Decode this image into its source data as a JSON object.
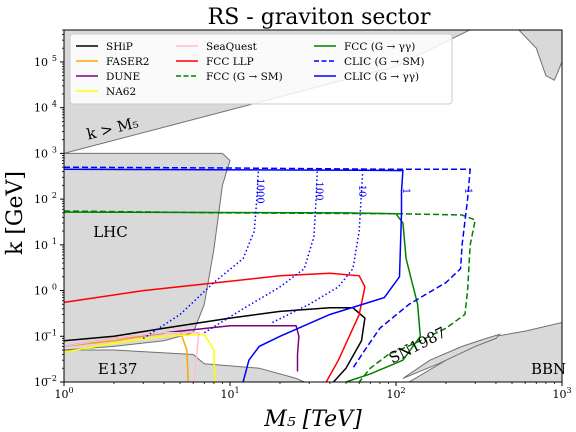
{
  "chart_data": {
    "type": "line",
    "title": "RS - graviton sector",
    "xlabel": "M₅ [TeV]",
    "ylabel": "k [GeV]",
    "xscale": "log",
    "yscale": "log",
    "xlim": [
      1,
      1000
    ],
    "ylim": [
      0.01,
      500000
    ],
    "x_ticks": [
      {
        "v": 1,
        "base": "10",
        "exp": "0"
      },
      {
        "v": 10,
        "base": "10",
        "exp": "1"
      },
      {
        "v": 100,
        "base": "10",
        "exp": "2"
      },
      {
        "v": 1000,
        "base": "10",
        "exp": "3"
      }
    ],
    "y_ticks": [
      {
        "v": 0.01,
        "base": "10",
        "exp": "−2"
      },
      {
        "v": 0.1,
        "base": "10",
        "exp": "−1"
      },
      {
        "v": 1,
        "base": "10",
        "exp": "0"
      },
      {
        "v": 10,
        "base": "10",
        "exp": "1"
      },
      {
        "v": 100,
        "base": "10",
        "exp": "2"
      },
      {
        "v": 1000,
        "base": "10",
        "exp": "3"
      },
      {
        "v": 10000,
        "base": "10",
        "exp": "4"
      },
      {
        "v": 100000,
        "base": "10",
        "exp": "5"
      }
    ],
    "grid": false,
    "legend_position": "top",
    "colors": {
      "region_fill": "#d9d9d9",
      "region_edge": "#707070",
      "ship": "#000000",
      "faser2": "#ffa500",
      "dune": "#800080",
      "na62": "#ffff00",
      "seaquest": "#ffc0cb",
      "fcc_llp": "#ff0000",
      "fcc_green": "#008000",
      "clic_blue": "#0000ff"
    },
    "series": [
      {
        "name": "SHiP",
        "key": "ship",
        "style": "solid",
        "points": [
          [
            1,
            0.08
          ],
          [
            2,
            0.1
          ],
          [
            4,
            0.15
          ],
          [
            10,
            0.25
          ],
          [
            20,
            0.35
          ],
          [
            40,
            0.42
          ],
          [
            55,
            0.42
          ],
          [
            65,
            0.25
          ],
          [
            62,
            0.08
          ],
          [
            50,
            0.02
          ],
          [
            42,
            0.01
          ]
        ]
      },
      {
        "name": "FASER2",
        "key": "faser2",
        "style": "solid",
        "points": [
          [
            1,
            0.06
          ],
          [
            2,
            0.08
          ],
          [
            3,
            0.1
          ],
          [
            5,
            0.13
          ],
          [
            5.5,
            0.05
          ],
          [
            5.6,
            0.01
          ]
        ]
      },
      {
        "name": "DUNE",
        "key": "dune",
        "style": "solid",
        "points": [
          [
            1,
            0.06
          ],
          [
            2,
            0.09
          ],
          [
            5,
            0.13
          ],
          [
            10,
            0.17
          ],
          [
            25,
            0.17
          ],
          [
            26,
            0.1
          ],
          [
            25.5,
            0.04
          ],
          [
            25.5,
            0.017
          ]
        ]
      },
      {
        "name": "NA62",
        "key": "na62",
        "style": "solid",
        "points": [
          [
            1,
            0.045
          ],
          [
            2,
            0.07
          ],
          [
            4,
            0.1
          ],
          [
            7,
            0.11
          ],
          [
            8,
            0.05
          ],
          [
            8.1,
            0.01
          ]
        ]
      },
      {
        "name": "SeaQuest",
        "key": "seaquest",
        "style": "solid",
        "points": [
          [
            1,
            0.06
          ],
          [
            2,
            0.09
          ],
          [
            4,
            0.12
          ],
          [
            6.5,
            0.12
          ],
          [
            6.3,
            0.04
          ],
          [
            6.1,
            0.01
          ]
        ]
      },
      {
        "name": "FCC LLP",
        "key": "fcc_llp",
        "style": "solid",
        "points": [
          [
            1,
            0.55
          ],
          [
            3,
            1.0
          ],
          [
            10,
            1.6
          ],
          [
            20,
            2.1
          ],
          [
            40,
            2.4
          ],
          [
            60,
            2.1
          ],
          [
            65,
            1.2
          ],
          [
            60,
            0.3
          ],
          [
            45,
            0.03
          ],
          [
            38,
            0.01
          ]
        ]
      },
      {
        "name": "FCC (G → SM)",
        "key": "fcc_green",
        "style": "dashed",
        "points": [
          [
            1,
            55
          ],
          [
            10,
            50
          ],
          [
            100,
            48
          ],
          [
            250,
            45
          ],
          [
            300,
            35
          ],
          [
            280,
            10
          ],
          [
            270,
            1
          ],
          [
            260,
            0.3
          ],
          [
            200,
            0.15
          ],
          [
            130,
            0.07
          ],
          [
            90,
            0.04
          ],
          [
            70,
            0.02
          ],
          [
            60,
            0.01
          ]
        ]
      },
      {
        "name": "FCC (G → γγ)",
        "key": "fcc_green",
        "style": "solid",
        "points": [
          [
            1,
            52
          ],
          [
            50,
            50
          ],
          [
            100,
            48
          ],
          [
            110,
            30
          ],
          [
            115,
            5
          ],
          [
            125,
            1.5
          ],
          [
            135,
            0.5
          ],
          [
            140,
            0.1
          ],
          [
            110,
            0.03
          ],
          [
            70,
            0.015
          ],
          [
            50,
            0.01
          ]
        ]
      },
      {
        "name": "CLIC (G → SM)",
        "key": "clic_blue",
        "style": "dashed",
        "points": [
          [
            1,
            500
          ],
          [
            10,
            480
          ],
          [
            100,
            450
          ],
          [
            280,
            450
          ],
          [
            270,
            100
          ],
          [
            250,
            10
          ],
          [
            245,
            3
          ],
          [
            200,
            1.5
          ],
          [
            120,
            0.5
          ],
          [
            80,
            0.15
          ],
          [
            65,
            0.05
          ],
          [
            55,
            0.02
          ]
        ]
      },
      {
        "name": "CLIC (G → γγ)",
        "key": "clic_blue",
        "style": "solid",
        "points": [
          [
            1,
            450
          ],
          [
            60,
            430
          ],
          [
            110,
            420
          ],
          [
            108,
            150
          ],
          [
            108,
            50
          ],
          [
            105,
            2
          ],
          [
            85,
            0.7
          ],
          [
            40,
            0.3
          ],
          [
            20,
            0.1
          ],
          [
            15,
            0.06
          ],
          [
            13,
            0.03
          ],
          [
            12,
            0.01
          ]
        ]
      }
    ],
    "dotted_curves": [
      {
        "label": "1000",
        "key": "clic_blue",
        "label_at": [
          14.5,
          150
        ],
        "points": [
          [
            3,
            0.09
          ],
          [
            5,
            0.3
          ],
          [
            8,
            1.5
          ],
          [
            12,
            5
          ],
          [
            14,
            20
          ],
          [
            14.5,
            100
          ],
          [
            14.8,
            400
          ]
        ]
      },
      {
        "label": "100",
        "key": "clic_blue",
        "label_at": [
          33,
          150
        ],
        "points": [
          [
            7,
            0.12
          ],
          [
            12,
            0.4
          ],
          [
            20,
            1.2
          ],
          [
            28,
            3
          ],
          [
            32,
            15
          ],
          [
            33,
            100
          ],
          [
            33.5,
            400
          ]
        ]
      },
      {
        "label": "10",
        "key": "clic_blue",
        "label_at": [
          60,
          150
        ],
        "points": [
          [
            18,
            0.2
          ],
          [
            30,
            0.5
          ],
          [
            45,
            1.2
          ],
          [
            55,
            3
          ],
          [
            60,
            20
          ],
          [
            62,
            150
          ],
          [
            63,
            400
          ]
        ]
      },
      {
        "label": "1",
        "key": "clic_blue",
        "label_at": [
          110,
          150
        ],
        "points": []
      },
      {
        "label": "1",
        "key": "clic_blue",
        "label_at": [
          260,
          150
        ],
        "points": []
      }
    ],
    "regions": [
      {
        "label": "k > M₅",
        "label_at": [
          1.4,
          2000
        ],
        "rotate": -14,
        "points": [
          [
            1,
            1000
          ],
          [
            100,
            80000
          ],
          [
            1000,
            5000000
          ],
          [
            1000,
            500000
          ],
          [
            1,
            500000
          ]
        ]
      },
      {
        "label": "",
        "label_at": null,
        "rotate": 0,
        "points": [
          [
            550,
            500000
          ],
          [
            1000,
            500000
          ],
          [
            1000,
            100000
          ],
          [
            900,
            40000
          ],
          [
            800,
            50000
          ],
          [
            700,
            200000
          ]
        ]
      },
      {
        "label": "LHC",
        "label_at": [
          1.5,
          15
        ],
        "rotate": 0,
        "points": [
          [
            1,
            0.05
          ],
          [
            2,
            0.06
          ],
          [
            4,
            0.08
          ],
          [
            6,
            0.12
          ],
          [
            7,
            0.5
          ],
          [
            8,
            8
          ],
          [
            9,
            200
          ],
          [
            10,
            700
          ],
          [
            9,
            1000
          ],
          [
            1,
            1000
          ]
        ]
      },
      {
        "label": "E137",
        "label_at": [
          1.6,
          0.015
        ],
        "rotate": 0,
        "points": [
          [
            1,
            0.01
          ],
          [
            1,
            0.05
          ],
          [
            2,
            0.05
          ],
          [
            6,
            0.04
          ],
          [
            7,
            0.025
          ],
          [
            15,
            0.02
          ],
          [
            25,
            0.012
          ],
          [
            28,
            0.01
          ]
        ]
      },
      {
        "label": "BBN",
        "label_at": [
          650,
          0.015
        ],
        "rotate": 0,
        "points": [
          [
            120,
            0.01
          ],
          [
            200,
            0.03
          ],
          [
            280,
            0.06
          ],
          [
            400,
            0.1
          ],
          [
            600,
            0.13
          ],
          [
            1000,
            0.2
          ],
          [
            1000,
            0.01
          ]
        ]
      },
      {
        "label": "SN1987",
        "label_at": [
          95,
          0.025
        ],
        "rotate": -27,
        "points": [
          [
            110,
            0.012
          ],
          [
            160,
            0.03
          ],
          [
            250,
            0.06
          ],
          [
            350,
            0.09
          ],
          [
            420,
            0.11
          ],
          [
            400,
            0.09
          ],
          [
            300,
            0.06
          ],
          [
            180,
            0.025
          ]
        ]
      }
    ]
  }
}
